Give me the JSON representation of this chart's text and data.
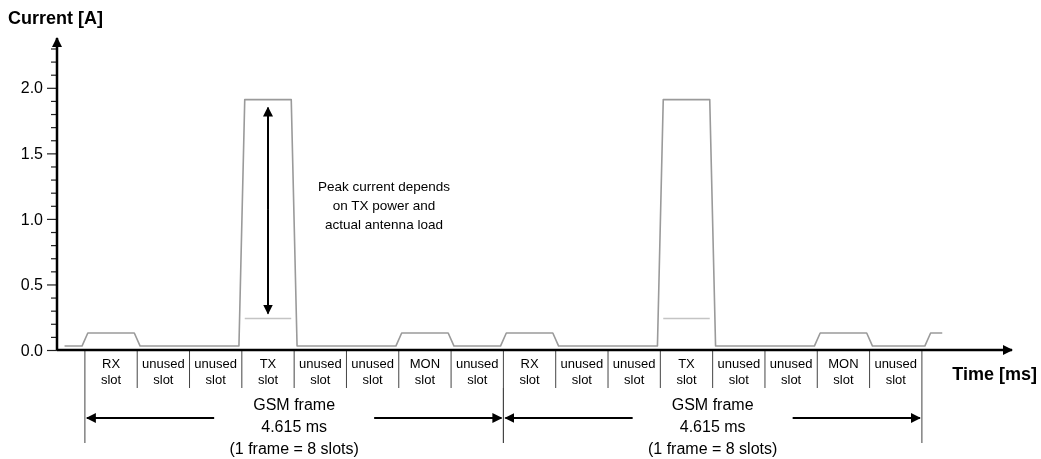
{
  "chart_data": {
    "type": "line",
    "xlabel": "Time [ms]",
    "ylabel": "Current [A]",
    "categories": [
      null,
      null,
      null,
      null,
      null,
      null,
      null,
      null,
      "RX\nslot",
      null,
      null,
      null,
      null,
      null,
      null,
      null,
      null,
      "unused\nslot",
      null,
      null,
      null,
      null,
      null,
      null,
      null,
      null,
      "unused\nslot",
      null,
      null,
      null,
      null,
      null,
      null,
      null,
      null,
      "TX\nslot",
      null,
      null,
      null,
      null,
      null,
      null,
      null,
      null,
      "unused\nslot",
      null,
      null,
      null,
      null,
      null,
      null,
      null,
      null,
      "unused\nslot",
      null,
      null,
      null,
      null,
      null,
      null,
      null,
      null,
      "MON\nslot",
      null,
      null,
      null,
      null,
      null,
      null,
      null,
      null,
      "unused\nslot",
      null,
      null,
      null,
      null,
      null,
      null,
      null,
      null,
      "RX\nslot",
      null,
      null,
      null,
      null,
      null,
      null,
      null,
      null,
      "unused\nslot",
      null,
      null,
      null,
      null,
      null,
      null,
      null,
      null,
      "unused\nslot",
      null,
      null,
      null,
      null,
      null,
      null,
      null,
      null,
      "TX\nslot",
      null,
      null,
      null,
      null,
      null,
      null,
      null,
      null,
      "unused\nslot",
      null,
      null,
      null,
      null,
      null,
      null,
      null,
      null,
      "unused\nslot",
      null,
      null,
      null,
      null,
      null,
      null,
      null,
      null,
      "MON\nslot",
      null,
      null,
      null,
      null,
      null,
      null,
      null,
      null,
      "unused\nslot",
      null,
      null,
      null,
      null,
      null,
      null,
      null,
      null
    ],
    "ylim": [
      0,
      2.38
    ],
    "yticks": [
      {
        "value": 0,
        "label": "0.0"
      },
      {
        "value": 0.1,
        "label": null
      },
      {
        "value": 0.2,
        "label": null
      },
      {
        "value": 0.3,
        "label": null
      },
      {
        "value": 0.4,
        "label": null
      },
      {
        "value": 0.5,
        "label": "0.5"
      },
      {
        "value": 0.6,
        "label": null
      },
      {
        "value": 0.7,
        "label": null
      },
      {
        "value": 0.8,
        "label": null
      },
      {
        "value": 0.9,
        "label": null
      },
      {
        "value": 1.0,
        "label": "1.0"
      },
      {
        "value": 1.1,
        "label": null
      },
      {
        "value": 1.2,
        "label": null
      },
      {
        "value": 1.3,
        "label": null
      },
      {
        "value": 1.4,
        "label": null
      },
      {
        "value": 1.5,
        "label": "1.5"
      },
      {
        "value": 1.6,
        "label": null
      },
      {
        "value": 1.7,
        "label": null
      },
      {
        "value": 1.8,
        "label": null
      },
      {
        "value": 1.9,
        "label": null
      },
      {
        "value": 2.0,
        "label": "2.0"
      },
      {
        "value": 2.1,
        "label": null
      },
      {
        "value": 2.2,
        "label": null
      },
      {
        "value": 2.3,
        "label": null
      }
    ],
    "series": [
      {
        "color": "#9a9a9a",
        "values": [
          0.03,
          0.03,
          0.03,
          0.03,
          0.13,
          0.13,
          0.13,
          0.13,
          0.13,
          0.13,
          0.13,
          0.13,
          0.13,
          0.03,
          0.03,
          0.03,
          0.03,
          0.03,
          0.03,
          0.03,
          0.03,
          0.03,
          0.03,
          0.03,
          0.03,
          0.03,
          0.03,
          0.03,
          0.03,
          0.03,
          0.03,
          1.91,
          1.91,
          1.91,
          1.91,
          1.91,
          1.91,
          1.91,
          1.91,
          1.91,
          0.03,
          0.03,
          0.03,
          0.03,
          0.03,
          0.03,
          0.03,
          0.03,
          0.03,
          0.03,
          0.03,
          0.03,
          0.03,
          0.03,
          0.03,
          0.03,
          0.03,
          0.03,
          0.13,
          0.13,
          0.13,
          0.13,
          0.13,
          0.13,
          0.13,
          0.13,
          0.13,
          0.03,
          0.03,
          0.03,
          0.03,
          0.03,
          0.03,
          0.03,
          0.03,
          0.03,
          0.13,
          0.13,
          0.13,
          0.13,
          0.13,
          0.13,
          0.13,
          0.13,
          0.13,
          0.03,
          0.03,
          0.03,
          0.03,
          0.03,
          0.03,
          0.03,
          0.03,
          0.03,
          0.03,
          0.03,
          0.03,
          0.03,
          0.03,
          0.03,
          0.03,
          0.03,
          0.03,
          1.91,
          1.91,
          1.91,
          1.91,
          1.91,
          1.91,
          1.91,
          1.91,
          1.91,
          0.03,
          0.03,
          0.03,
          0.03,
          0.03,
          0.03,
          0.03,
          0.03,
          0.03,
          0.03,
          0.03,
          0.03,
          0.03,
          0.03,
          0.03,
          0.03,
          0.03,
          0.03,
          0.13,
          0.13,
          0.13,
          0.13,
          0.13,
          0.13,
          0.13,
          0.13,
          0.13,
          0.03,
          0.03,
          0.03,
          0.03,
          0.03,
          0.03,
          0.03,
          0.03,
          0.03,
          0.03,
          0.13,
          0.13,
          0.13
        ]
      },
      {
        "color": "#c4c4c4",
        "values": [
          null,
          null,
          null,
          null,
          null,
          null,
          null,
          null,
          null,
          null,
          null,
          null,
          null,
          null,
          null,
          null,
          null,
          null,
          null,
          null,
          null,
          null,
          null,
          null,
          null,
          null,
          null,
          null,
          null,
          null,
          null,
          0.24,
          0.24,
          0.24,
          0.24,
          0.24,
          0.24,
          0.24,
          0.24,
          0.24,
          null,
          null,
          null,
          null,
          null,
          null,
          null,
          null,
          null,
          null,
          null,
          null,
          null,
          null,
          null,
          null,
          null,
          null,
          null,
          null,
          null,
          null,
          null,
          null,
          null,
          null,
          null,
          null,
          null,
          null,
          null,
          null,
          null,
          null,
          null,
          null,
          null,
          null,
          null,
          null,
          null,
          null,
          null,
          null,
          null,
          null,
          null,
          null,
          null,
          null,
          null,
          null,
          null,
          null,
          null,
          null,
          null,
          null,
          null,
          null,
          null,
          null,
          null,
          0.24,
          0.24,
          0.24,
          0.24,
          0.24,
          0.24,
          0.24,
          0.24,
          0.24,
          null,
          null,
          null,
          null,
          null,
          null,
          null,
          null,
          null,
          null,
          null,
          null,
          null,
          null,
          null,
          null,
          null,
          null,
          null,
          null,
          null,
          null,
          null,
          null,
          null,
          null,
          null,
          null,
          null,
          null,
          null,
          null,
          null,
          null,
          null,
          null,
          null,
          null,
          null,
          null
        ]
      }
    ],
    "annotations": [
      "Peak current depends\non TX power and\nactual antenna load",
      "GSM frame\n4.615 ms\n(1 frame = 8 slots)",
      "GSM frame\n4.615 ms\n(1 frame = 8 slots)"
    ]
  }
}
